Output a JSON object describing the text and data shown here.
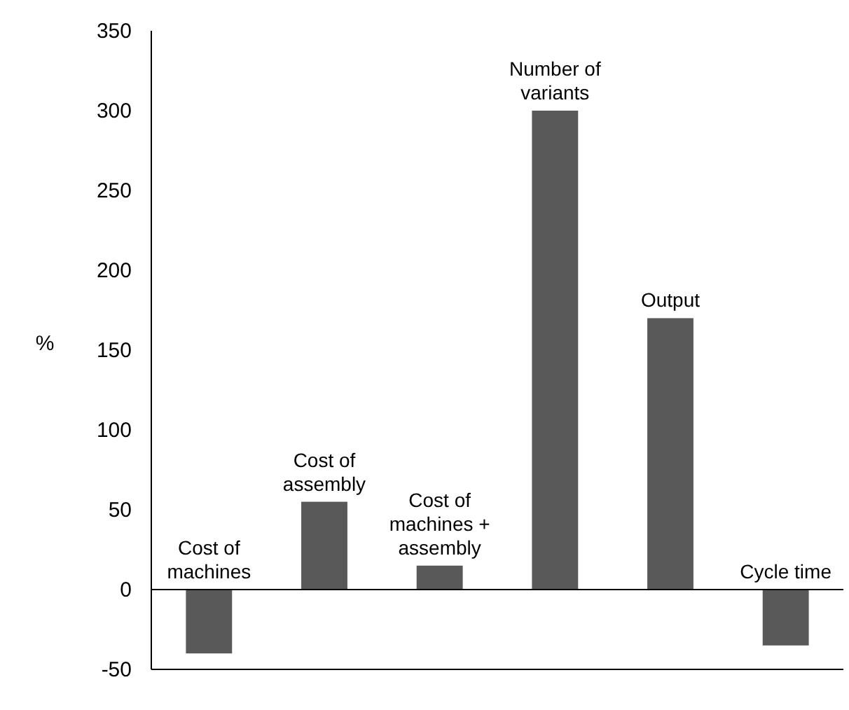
{
  "chart_data": {
    "type": "bar",
    "ylabel": "%",
    "categories": [
      "Cost of machines",
      "Cost of assembly",
      "Cost of machines + assembly",
      "Number of variants",
      "Output",
      "Cycle time"
    ],
    "values": [
      -40,
      55,
      15,
      300,
      170,
      -35
    ],
    "color": "#595959",
    "ylim": [
      -50,
      350
    ],
    "yticks": [
      -50,
      0,
      50,
      100,
      150,
      200,
      250,
      300,
      350
    ],
    "grid": false
  }
}
